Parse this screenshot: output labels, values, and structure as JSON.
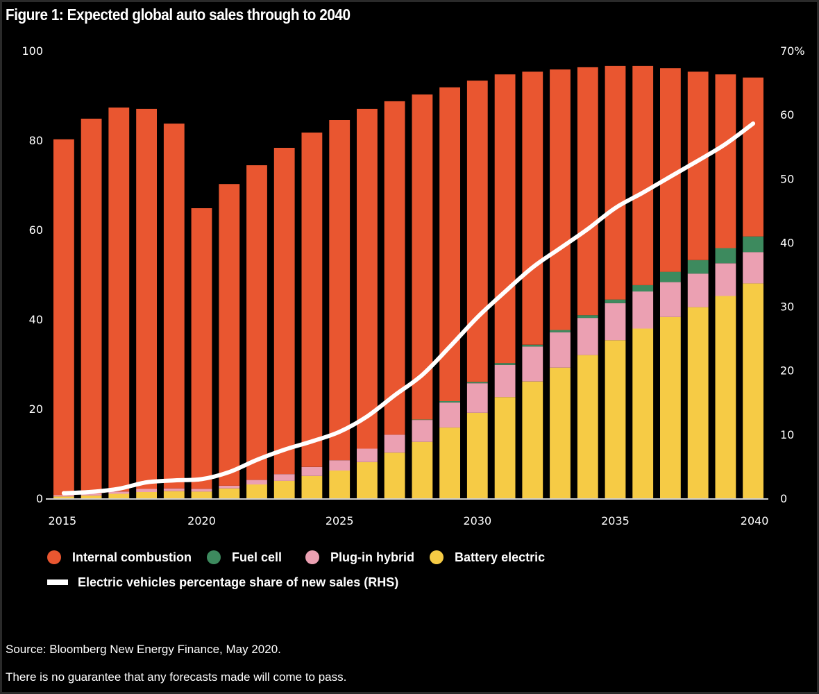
{
  "title": "Figure 1: Expected global auto sales through to 2040",
  "legend": {
    "internal_combustion": "Internal combustion",
    "fuel_cell": "Fuel cell",
    "plug_in_hybrid": "Plug-in hybrid",
    "battery_electric": "Battery electric",
    "ev_share": "Electric vehicles percentage share of new sales (RHS)"
  },
  "colors": {
    "internal_combustion": "#E95630",
    "fuel_cell": "#3D8A5E",
    "plug_in_hybrid": "#EBA0B2",
    "battery_electric": "#F6CB45",
    "ev_share_line": "#FFFFFF",
    "background": "#000000"
  },
  "source": "Source: Bloomberg New Energy Finance, May 2020.",
  "disclaimer": "There is no guarantee that any forecasts made will come to pass.",
  "chart_data": {
    "type": "bar",
    "subtype": "stacked-bar-with-line",
    "title": "Figure 1: Expected global auto sales through to 2040",
    "xlabel": "",
    "ylabel": "",
    "y2label": "",
    "categories": [
      2015,
      2016,
      2017,
      2018,
      2019,
      2020,
      2021,
      2022,
      2023,
      2024,
      2025,
      2026,
      2027,
      2028,
      2029,
      2030,
      2031,
      2032,
      2033,
      2034,
      2035,
      2036,
      2037,
      2038,
      2039,
      2040
    ],
    "x_tick_labels": [
      "2015",
      "2020",
      "2025",
      "2030",
      "2035",
      "2040"
    ],
    "ylim": [
      0,
      100
    ],
    "y_ticks": [
      "0",
      "20",
      "40",
      "60",
      "80",
      "100"
    ],
    "y2lim": [
      0,
      70
    ],
    "y2_ticks": [
      "0",
      "10",
      "20",
      "30",
      "40",
      "50",
      "60",
      "70%"
    ],
    "grid": false,
    "legend_position": "bottom-left",
    "series": [
      {
        "name": "Battery electric",
        "axis": "left",
        "type": "bar",
        "values": [
          0.4,
          0.6,
          1.0,
          1.4,
          1.6,
          1.5,
          2.2,
          3.1,
          3.9,
          5.0,
          6.2,
          8.1,
          10.2,
          12.6,
          15.8,
          19.1,
          22.6,
          26.1,
          29.2,
          32.0,
          35.3,
          37.9,
          40.5,
          42.7,
          45.2,
          48.0
        ]
      },
      {
        "name": "Plug-in hybrid",
        "axis": "left",
        "type": "bar",
        "values": [
          0.3,
          0.4,
          0.5,
          0.7,
          0.6,
          0.6,
          0.6,
          1.0,
          1.5,
          2.0,
          2.3,
          3.0,
          4.0,
          4.9,
          5.6,
          6.6,
          7.2,
          7.8,
          7.9,
          8.3,
          8.3,
          8.3,
          7.8,
          7.5,
          7.3,
          7.0
        ]
      },
      {
        "name": "Fuel cell",
        "axis": "left",
        "type": "bar",
        "values": [
          0,
          0,
          0,
          0,
          0,
          0,
          0,
          0,
          0,
          0,
          0,
          0,
          0,
          0.1,
          0.3,
          0.3,
          0.4,
          0.4,
          0.5,
          0.6,
          0.8,
          1.4,
          2.3,
          3.0,
          3.4,
          3.5
        ]
      },
      {
        "name": "Internal combustion",
        "axis": "left",
        "type": "bar",
        "values": [
          79.5,
          83.8,
          85.8,
          84.9,
          81.5,
          62.7,
          67.4,
          70.3,
          72.9,
          74.7,
          76.0,
          75.9,
          74.5,
          72.6,
          70.1,
          67.3,
          64.5,
          61.0,
          58.2,
          55.4,
          52.2,
          49.0,
          45.5,
          42.1,
          38.8,
          35.5
        ]
      },
      {
        "name": "Electric vehicles percentage share of new sales (RHS)",
        "axis": "right",
        "type": "line",
        "values": [
          0.8,
          1.0,
          1.5,
          2.5,
          2.8,
          3.0,
          4.1,
          6.0,
          7.6,
          8.9,
          10.4,
          12.8,
          16.1,
          19.3,
          23.7,
          28.3,
          32.3,
          36.1,
          39.1,
          42.1,
          45.4,
          47.8,
          50.3,
          52.8,
          55.4,
          58.6
        ]
      }
    ]
  }
}
